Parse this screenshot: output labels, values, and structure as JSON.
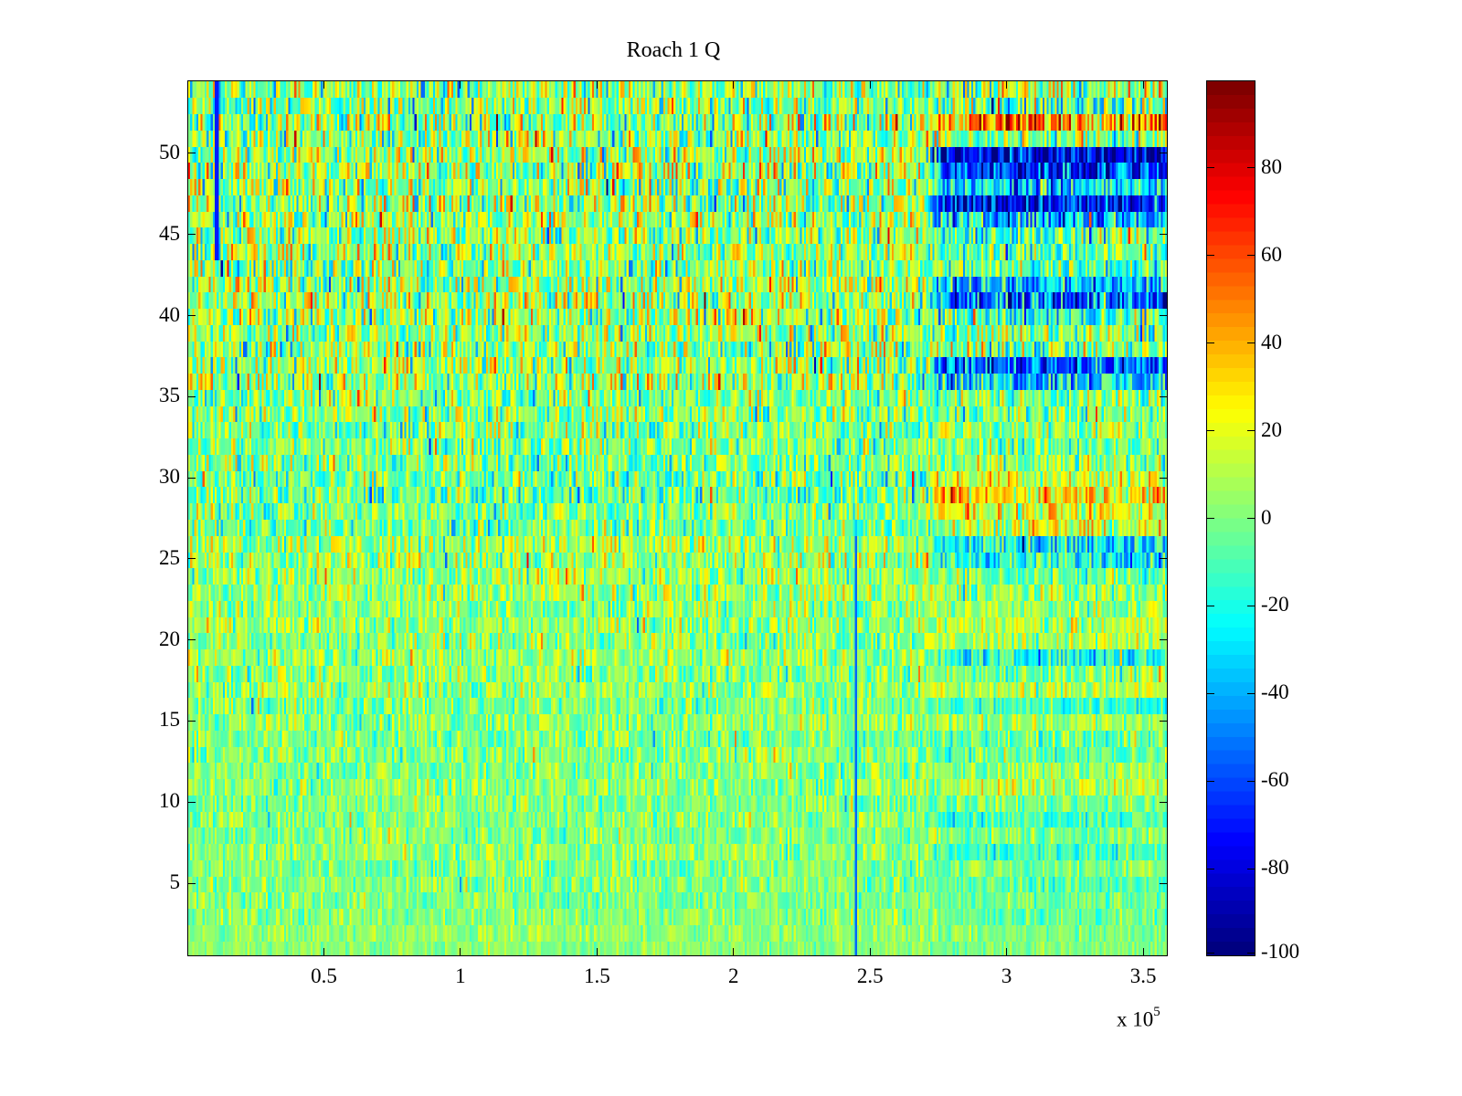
{
  "chart_data": {
    "type": "heatmap",
    "title": "Roach 1 Q",
    "xlabel": "",
    "ylabel": "",
    "x_multiplier_label": "x 10",
    "x_multiplier_exponent": "5",
    "xlim": [
      0,
      359000
    ],
    "ylim": [
      0.5,
      54.5
    ],
    "x_ticks": [
      {
        "value": 50000,
        "label": "0.5"
      },
      {
        "value": 100000,
        "label": "1"
      },
      {
        "value": 150000,
        "label": "1.5"
      },
      {
        "value": 200000,
        "label": "2"
      },
      {
        "value": 250000,
        "label": "2.5"
      },
      {
        "value": 300000,
        "label": "3"
      },
      {
        "value": 350000,
        "label": "3.5"
      }
    ],
    "y_ticks": [
      {
        "value": 5,
        "label": "5"
      },
      {
        "value": 10,
        "label": "10"
      },
      {
        "value": 15,
        "label": "15"
      },
      {
        "value": 20,
        "label": "20"
      },
      {
        "value": 25,
        "label": "25"
      },
      {
        "value": 30,
        "label": "30"
      },
      {
        "value": 35,
        "label": "35"
      },
      {
        "value": 40,
        "label": "40"
      },
      {
        "value": 45,
        "label": "45"
      },
      {
        "value": 50,
        "label": "50"
      }
    ],
    "colormap": "jet",
    "clim": [
      -100,
      100
    ],
    "colorbar_ticks": [
      {
        "value": -100,
        "label": "-100"
      },
      {
        "value": -80,
        "label": "-80"
      },
      {
        "value": -60,
        "label": "-60"
      },
      {
        "value": -40,
        "label": "-40"
      },
      {
        "value": -20,
        "label": "-20"
      },
      {
        "value": 0,
        "label": "0"
      },
      {
        "value": 20,
        "label": "20"
      },
      {
        "value": 40,
        "label": "40"
      },
      {
        "value": 60,
        "label": "60"
      },
      {
        "value": 80,
        "label": "80"
      }
    ],
    "regime_change_x": 275000,
    "rows_note": "per-row approximate mean value before/after regime change and noise amplitude; rows 1..54 bottom to top",
    "rows": [
      {
        "y": 1,
        "pre": 2,
        "post": 0,
        "noise": 4
      },
      {
        "y": 2,
        "pre": 3,
        "post": 0,
        "noise": 5
      },
      {
        "y": 3,
        "pre": 2,
        "post": -4,
        "noise": 6
      },
      {
        "y": 4,
        "pre": 0,
        "post": -5,
        "noise": 6
      },
      {
        "y": 5,
        "pre": 2,
        "post": -8,
        "noise": 7
      },
      {
        "y": 6,
        "pre": 0,
        "post": 0,
        "noise": 7
      },
      {
        "y": 7,
        "pre": 3,
        "post": -12,
        "noise": 7
      },
      {
        "y": 8,
        "pre": 0,
        "post": 0,
        "noise": 7
      },
      {
        "y": 9,
        "pre": 2,
        "post": -10,
        "noise": 7
      },
      {
        "y": 10,
        "pre": 0,
        "post": 0,
        "noise": 7
      },
      {
        "y": 11,
        "pre": 3,
        "post": 12,
        "noise": 8
      },
      {
        "y": 12,
        "pre": 0,
        "post": 3,
        "noise": 8
      },
      {
        "y": 13,
        "pre": 2,
        "post": -5,
        "noise": 8
      },
      {
        "y": 14,
        "pre": 0,
        "post": -5,
        "noise": 8
      },
      {
        "y": 15,
        "pre": 3,
        "post": 8,
        "noise": 8
      },
      {
        "y": 16,
        "pre": 0,
        "post": -12,
        "noise": 8
      },
      {
        "y": 17,
        "pre": 4,
        "post": 10,
        "noise": 9
      },
      {
        "y": 18,
        "pre": 2,
        "post": 0,
        "noise": 9
      },
      {
        "y": 19,
        "pre": 6,
        "post": -20,
        "noise": 9
      },
      {
        "y": 20,
        "pre": 3,
        "post": 10,
        "noise": 9
      },
      {
        "y": 21,
        "pre": 5,
        "post": 12,
        "noise": 9
      },
      {
        "y": 22,
        "pre": 3,
        "post": 5,
        "noise": 9
      },
      {
        "y": 23,
        "pre": 5,
        "post": 5,
        "noise": 10
      },
      {
        "y": 24,
        "pre": 6,
        "post": -5,
        "noise": 10
      },
      {
        "y": 25,
        "pre": 7,
        "post": -20,
        "noise": 11
      },
      {
        "y": 26,
        "pre": 8,
        "post": -25,
        "noise": 11
      },
      {
        "y": 27,
        "pre": -3,
        "post": 15,
        "noise": 11
      },
      {
        "y": 28,
        "pre": 0,
        "post": 20,
        "noise": 11
      },
      {
        "y": 29,
        "pre": -5,
        "post": 30,
        "noise": 12
      },
      {
        "y": 30,
        "pre": -3,
        "post": 20,
        "noise": 12
      },
      {
        "y": 31,
        "pre": 0,
        "post": 0,
        "noise": 11
      },
      {
        "y": 32,
        "pre": 2,
        "post": -3,
        "noise": 11
      },
      {
        "y": 33,
        "pre": 0,
        "post": 5,
        "noise": 12
      },
      {
        "y": 34,
        "pre": 2,
        "post": 0,
        "noise": 12
      },
      {
        "y": 35,
        "pre": 0,
        "post": 2,
        "noise": 12
      },
      {
        "y": 36,
        "pre": 8,
        "post": -30,
        "noise": 14
      },
      {
        "y": 37,
        "pre": 6,
        "post": -55,
        "noise": 14
      },
      {
        "y": 38,
        "pre": 4,
        "post": 0,
        "noise": 15
      },
      {
        "y": 39,
        "pre": 5,
        "post": 0,
        "noise": 14
      },
      {
        "y": 40,
        "pre": 8,
        "post": -15,
        "noise": 15
      },
      {
        "y": 41,
        "pre": 10,
        "post": -55,
        "noise": 15
      },
      {
        "y": 42,
        "pre": 8,
        "post": -35,
        "noise": 15
      },
      {
        "y": 43,
        "pre": 3,
        "post": -5,
        "noise": 14
      },
      {
        "y": 44,
        "pre": 6,
        "post": -8,
        "noise": 14
      },
      {
        "y": 45,
        "pre": 4,
        "post": -10,
        "noise": 14
      },
      {
        "y": 46,
        "pre": 8,
        "post": -35,
        "noise": 15
      },
      {
        "y": 47,
        "pre": 6,
        "post": -75,
        "noise": 15
      },
      {
        "y": 48,
        "pre": 4,
        "post": -30,
        "noise": 15
      },
      {
        "y": 49,
        "pre": 8,
        "post": -65,
        "noise": 16
      },
      {
        "y": 50,
        "pre": 6,
        "post": -80,
        "noise": 15
      },
      {
        "y": 51,
        "pre": 4,
        "post": 0,
        "noise": 15
      },
      {
        "y": 52,
        "pre": 5,
        "post": 50,
        "noise": 16
      },
      {
        "y": 53,
        "pre": 2,
        "post": -5,
        "noise": 15
      },
      {
        "y": 54,
        "pre": 4,
        "post": 5,
        "noise": 15
      }
    ],
    "line_features": [
      {
        "x": 245000,
        "rows": [
          1,
          26
        ],
        "value": -55
      },
      {
        "x": 10500,
        "rows": [
          44,
          54
        ],
        "value": -70
      }
    ]
  }
}
